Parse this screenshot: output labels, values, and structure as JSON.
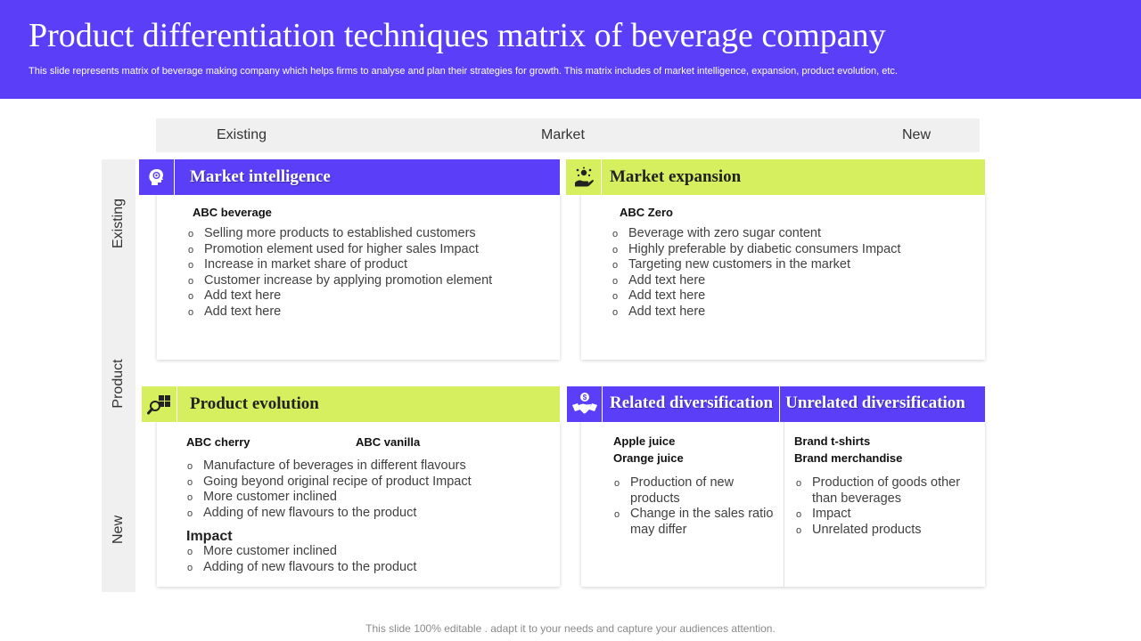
{
  "header": {
    "title": "Product differentiation techniques matrix of beverage company",
    "subtitle": "This slide represents matrix of beverage making company which helps firms to analyse and plan their strategies for growth. This matrix includes of market intelligence, expansion, product evolution, etc."
  },
  "axes": {
    "top": {
      "left": "Existing",
      "center": "Market",
      "right": "New"
    },
    "left": {
      "top": "Existing",
      "center": "Product",
      "bottom": "New"
    }
  },
  "market_intelligence": {
    "icon": "head-gear-icon",
    "title": "Market intelligence",
    "subtitle": "ABC beverage",
    "items": [
      "Selling more products to established customers",
      "Promotion element used for higher sales Impact",
      "Increase in market share of product",
      "Customer increase by applying promotion element",
      "Add text here",
      "Add text here"
    ]
  },
  "market_expansion": {
    "icon": "hand-coins-icon",
    "title": "Market expansion",
    "subtitle": "ABC Zero",
    "items": [
      "Beverage with zero sugar content",
      "Highly preferable by diabetic consumers Impact",
      "Targeting new customers in the market",
      "Add text here",
      "Add text here",
      "Add text here"
    ]
  },
  "product_evolution": {
    "icon": "magnifier-boxes-icon",
    "title": "Product evolution",
    "subtitle_1": "ABC cherry",
    "subtitle_2": "ABC vanilla",
    "items": [
      "Manufacture of beverages in different flavours",
      "Going beyond original recipe of product Impact",
      "More customer inclined",
      "Adding of new flavours to the product"
    ],
    "impact_label": "Impact",
    "impact_items": [
      "More customer inclined",
      "Adding of new flavours to the product"
    ]
  },
  "related_diversification": {
    "icon": "handshake-dollar-icon",
    "title": "Related diversification",
    "line_1": "Apple juice",
    "line_2": "Orange juice",
    "items": [
      "Production of new products",
      "Change in the sales ratio may differ"
    ]
  },
  "unrelated_diversification": {
    "title": "Unrelated diversification",
    "line_1": "Brand t-shirts",
    "line_2": "Brand merchandise",
    "items": [
      "Production of goods other than beverages",
      "Impact",
      "Unrelated products"
    ]
  },
  "footer": {
    "text": "This slide 100% editable . adapt it to your needs and capture your audiences attention."
  },
  "colors": {
    "accent_purple": "#5b3ff8",
    "accent_lime": "#d6ef5f",
    "axis_gray": "#f0f0f0"
  }
}
